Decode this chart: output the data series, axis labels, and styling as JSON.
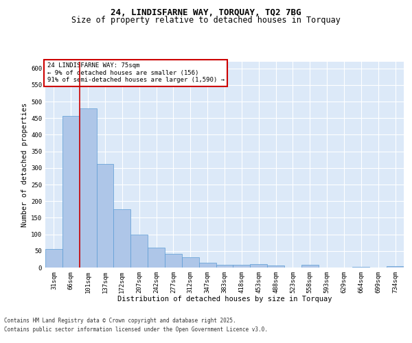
{
  "title_line1": "24, LINDISFARNE WAY, TORQUAY, TQ2 7BG",
  "title_line2": "Size of property relative to detached houses in Torquay",
  "xlabel": "Distribution of detached houses by size in Torquay",
  "ylabel": "Number of detached properties",
  "footer_line1": "Contains HM Land Registry data © Crown copyright and database right 2025.",
  "footer_line2": "Contains public sector information licensed under the Open Government Licence v3.0.",
  "annotation_line1": "24 LINDISFARNE WAY: 75sqm",
  "annotation_line2": "← 9% of detached houses are smaller (156)",
  "annotation_line3": "91% of semi-detached houses are larger (1,590) →",
  "bar_color": "#aec6e8",
  "bar_edge_color": "#5b9bd5",
  "background_color": "#dce9f8",
  "grid_color": "#ffffff",
  "reference_line_color": "#cc0000",
  "reference_line_x": 1.5,
  "categories": [
    "31sqm",
    "66sqm",
    "101sqm",
    "137sqm",
    "172sqm",
    "207sqm",
    "242sqm",
    "277sqm",
    "312sqm",
    "347sqm",
    "383sqm",
    "418sqm",
    "453sqm",
    "488sqm",
    "523sqm",
    "558sqm",
    "593sqm",
    "629sqm",
    "664sqm",
    "699sqm",
    "734sqm"
  ],
  "values": [
    55,
    456,
    480,
    313,
    175,
    100,
    59,
    42,
    30,
    15,
    9,
    8,
    10,
    6,
    0,
    8,
    0,
    0,
    3,
    0,
    4
  ],
  "ylim": [
    0,
    620
  ],
  "yticks": [
    0,
    50,
    100,
    150,
    200,
    250,
    300,
    350,
    400,
    450,
    500,
    550,
    600
  ],
  "annotation_box_color": "#ffffff",
  "annotation_box_edge_color": "#cc0000",
  "title_fontsize": 9,
  "subtitle_fontsize": 8.5,
  "axis_label_fontsize": 7.5,
  "tick_fontsize": 6.5,
  "annotation_fontsize": 6.5,
  "footer_fontsize": 5.5
}
